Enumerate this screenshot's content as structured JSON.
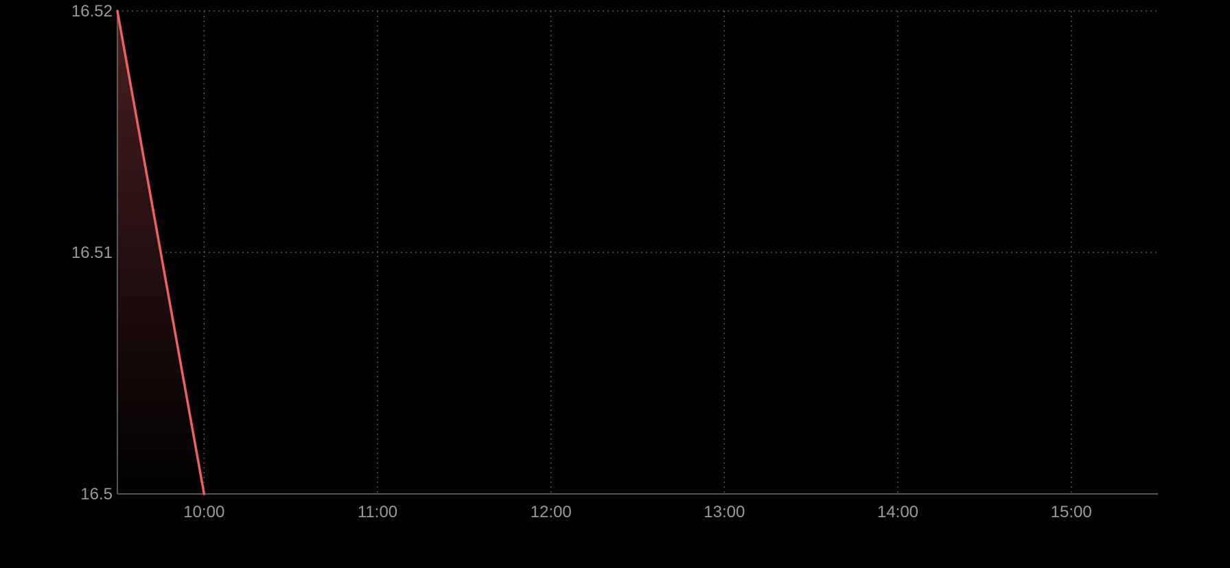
{
  "chart_data": {
    "type": "area",
    "x": [
      "09:30",
      "10:00"
    ],
    "y": [
      16.52,
      16.5
    ],
    "xlabel": "",
    "ylabel": "",
    "x_ticks": [
      "10:00",
      "11:00",
      "12:00",
      "13:00",
      "14:00",
      "15:00"
    ],
    "y_ticks": [
      "16.5",
      "16.51",
      "16.52"
    ],
    "xlim": [
      "09:30",
      "15:30"
    ],
    "ylim": [
      16.5,
      16.52
    ],
    "grid": true,
    "grid_style": "dotted",
    "line_color": "#f0605f",
    "fill_color_top": "#4a1f20",
    "fill_color_bottom": "#000000",
    "background": "#000000",
    "axis_color": "#707070",
    "grid_color": "#555555",
    "tick_label_color": "#9a9a9a"
  }
}
